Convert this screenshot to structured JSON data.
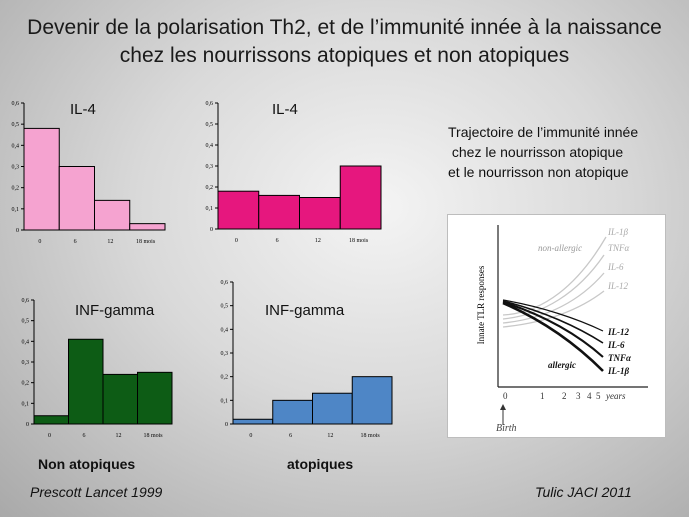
{
  "title": {
    "line1": "Devenir de la polarisation Th2, et de l’immunité innée  à la naissance",
    "line2": "chez les nourrissons atopiques et non atopiques"
  },
  "chart_data": [
    {
      "type": "bar",
      "color": "#f5a3d0",
      "title": "IL-4",
      "categories": [
        "0",
        "6",
        "12",
        "18 mois"
      ],
      "values": [
        0.48,
        0.3,
        0.14,
        0.03
      ],
      "ylim": [
        0,
        0.6
      ],
      "yticks": [
        "0",
        "0,1",
        "0,2",
        "0,3",
        "0,4",
        "0,5",
        "0,6"
      ]
    },
    {
      "type": "bar",
      "color": "#e6177e",
      "title": "IL-4",
      "categories": [
        "0",
        "6",
        "12",
        "18 mois"
      ],
      "values": [
        0.18,
        0.16,
        0.15,
        0.3
      ],
      "ylim": [
        0,
        0.6
      ],
      "yticks": [
        "0",
        "0,1",
        "0,2",
        "0,3",
        "0,4",
        "0,5",
        "0,6"
      ]
    },
    {
      "type": "bar",
      "color": "#0d5c15",
      "title": "INF-gamma",
      "categories": [
        "0",
        "6",
        "12",
        "18 mois"
      ],
      "values": [
        0.04,
        0.41,
        0.24,
        0.25
      ],
      "ylim": [
        0,
        0.6
      ],
      "yticks": [
        "0",
        "0,1",
        "0,2",
        "0,3",
        "0,4",
        "0,5",
        "0,6"
      ]
    },
    {
      "type": "bar",
      "color": "#4e86c6",
      "title": "INF-gamma",
      "categories": [
        "0",
        "6",
        "12",
        "18 mois"
      ],
      "values": [
        0.02,
        0.1,
        0.13,
        0.2
      ],
      "ylim": [
        0,
        0.6
      ],
      "yticks": [
        "0",
        "0,1",
        "0,2",
        "0,3",
        "0,4",
        "0,5",
        "0,6"
      ]
    }
  ],
  "side_text": "Trajectoire de l’immunité innée\n chez le nourrisson atopique\net le nourrisson non atopique",
  "inset_figure": {
    "ylabel": "Innate TLR responses",
    "xlabel": "years",
    "birth_label": "Birth",
    "x_ticks": [
      "0",
      "1",
      "2",
      "3",
      "4",
      "5"
    ],
    "non_allergic_label": "non-allergic",
    "allergic_label": "allergic",
    "upper_labels": [
      "IL-1β",
      "TNFα",
      "IL-6",
      "IL-12"
    ],
    "lower_labels": [
      "IL-12",
      "IL-6",
      "TNFα",
      "IL-1β"
    ]
  },
  "groups": {
    "left": "Non atopiques",
    "right": "atopiques"
  },
  "citations": {
    "left": "Prescott  Lancet 1999",
    "right": "Tulic JACI 2011"
  }
}
